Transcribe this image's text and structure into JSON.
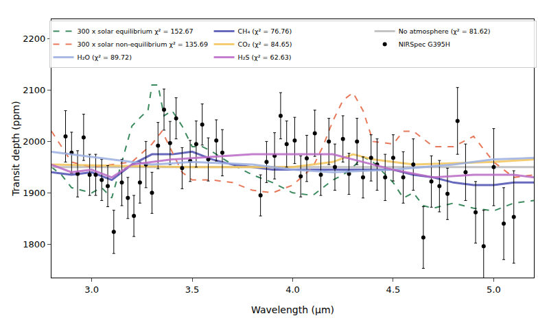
{
  "chart_data": {
    "type": "line",
    "x_label": "Wavelength (μm)",
    "y_label": "Transit depth (ppm)",
    "xlim": [
      2.8,
      5.2
    ],
    "ylim": [
      1735,
      2238
    ],
    "xticks": [
      {
        "value": 3,
        "label": "3.0"
      },
      {
        "value": 3.5,
        "label": "3.5"
      },
      {
        "value": 4,
        "label": "4.0"
      },
      {
        "value": 4.5,
        "label": "4.5"
      },
      {
        "value": 5,
        "label": "5.0"
      }
    ],
    "yticks": [
      1800,
      1900,
      2000,
      2100,
      2200
    ],
    "grid": false,
    "legend": "top",
    "series": [
      {
        "name": "300 x solar equilibrium χ² = 152.67",
        "type": "line",
        "line_style": "dashed",
        "color": "#3b8a5e",
        "x": [
          2.8,
          2.85,
          2.9,
          2.95,
          3.0,
          3.05,
          3.1,
          3.15,
          3.2,
          3.25,
          3.28,
          3.3,
          3.33,
          3.36,
          3.4,
          3.45,
          3.5,
          3.55,
          3.6,
          3.7,
          3.8,
          3.9,
          4.0,
          4.1,
          4.2,
          4.25,
          4.3,
          4.35,
          4.4,
          4.45,
          4.5,
          4.55,
          4.6,
          4.65,
          4.7,
          4.8,
          4.9,
          5.0,
          5.1,
          5.2
        ],
        "values": [
          1950,
          1935,
          1910,
          1905,
          1900,
          1910,
          1890,
          1960,
          2030,
          2050,
          2060,
          2110,
          2110,
          2050,
          2060,
          2030,
          1990,
          1990,
          1980,
          1955,
          1935,
          1920,
          1900,
          1895,
          1925,
          1935,
          1950,
          1970,
          1960,
          1940,
          1920,
          1890,
          1900,
          1875,
          1870,
          1880,
          1870,
          1865,
          1880,
          1885
        ]
      },
      {
        "name": "CH₄ (χ² = 76.76)",
        "type": "line",
        "line_style": "solid",
        "color": "#4b4fb0",
        "x": [
          2.8,
          2.9,
          3.0,
          3.1,
          3.2,
          3.3,
          3.4,
          3.5,
          3.6,
          3.7,
          3.8,
          3.9,
          4.0,
          4.2,
          4.4,
          4.5,
          4.6,
          4.7,
          4.8,
          4.9,
          5.0,
          5.1,
          5.2
        ],
        "values": [
          1940,
          1935,
          1940,
          1925,
          1955,
          1975,
          1975,
          1980,
          1965,
          1955,
          1950,
          1945,
          1945,
          1945,
          1945,
          1945,
          1935,
          1930,
          1920,
          1915,
          1915,
          1920,
          1920
        ]
      },
      {
        "name": "No atmosphere (χ² = 81.62)",
        "type": "line",
        "line_style": "solid",
        "color": "#b8b8b8",
        "x": [
          2.8,
          5.2
        ],
        "values": [
          1950,
          1950
        ]
      },
      {
        "name": "300 x solar non-equilibrium χ² = 135.69",
        "type": "line",
        "line_style": "dashed",
        "color": "#e8785a",
        "x": [
          2.8,
          2.85,
          2.9,
          3.0,
          3.1,
          3.2,
          3.3,
          3.35,
          3.4,
          3.45,
          3.5,
          3.6,
          3.7,
          3.8,
          3.9,
          4.0,
          4.1,
          4.15,
          4.2,
          4.25,
          4.3,
          4.35,
          4.4,
          4.5,
          4.55,
          4.6,
          4.7,
          4.8,
          4.85,
          4.9,
          5.0,
          5.1,
          5.2
        ],
        "values": [
          2020,
          1990,
          1960,
          1950,
          1955,
          1960,
          1995,
          2020,
          1980,
          1940,
          1925,
          1925,
          1920,
          1905,
          1900,
          1915,
          1950,
          1990,
          2040,
          2080,
          2095,
          2060,
          2000,
          1995,
          2020,
          2020,
          1990,
          1990,
          2000,
          2010,
          1960,
          1930,
          1935
        ]
      },
      {
        "name": "CO₂ (χ² = 84.65)",
        "type": "line",
        "line_style": "solid",
        "color": "#f2c45a",
        "x": [
          2.8,
          3.5,
          4.0,
          4.2,
          4.3,
          4.4,
          4.6,
          5.0,
          5.2
        ],
        "values": [
          1955,
          1950,
          1950,
          1960,
          1975,
          1965,
          1955,
          1960,
          1965
        ]
      },
      {
        "name": "NIRSpec G395H",
        "type": "scatter",
        "marker": "circle",
        "color": "#000000",
        "x": [
          2.87,
          2.9,
          2.93,
          2.96,
          2.99,
          3.02,
          3.05,
          3.08,
          3.11,
          3.15,
          3.18,
          3.21,
          3.24,
          3.27,
          3.3,
          3.33,
          3.36,
          3.39,
          3.42,
          3.45,
          3.49,
          3.52,
          3.55,
          3.58,
          3.62,
          3.65,
          3.84,
          3.87,
          3.91,
          3.94,
          3.97,
          4.01,
          4.04,
          4.07,
          4.11,
          4.14,
          4.18,
          4.21,
          4.25,
          4.28,
          4.32,
          4.35,
          4.39,
          4.42,
          4.46,
          4.5,
          4.55,
          4.6,
          4.65,
          4.69,
          4.73,
          4.77,
          4.82,
          4.86,
          4.91,
          4.95,
          5.0,
          5.05,
          5.1
        ],
        "values": [
          2010,
          1978,
          1937,
          2008,
          1935,
          1935,
          1925,
          1913,
          1824,
          1920,
          1890,
          1855,
          1920,
          1955,
          1900,
          1992,
          2062,
          1997,
          2045,
          1948,
          1962,
          1995,
          2033,
          1965,
          2002,
          1978,
          1895,
          1960,
          1972,
          2050,
          1995,
          2002,
          1932,
          1967,
          2016,
          1935,
          2000,
          1950,
          2005,
          1937,
          2000,
          1930,
          1968,
          1955,
          1930,
          1968,
          1930,
          1955,
          1813,
          1922,
          1913,
          1898,
          2040,
          1940,
          1862,
          1796,
          1950,
          1840,
          1853
        ],
        "error": [
          50,
          40,
          45,
          45,
          40,
          40,
          40,
          40,
          42,
          45,
          40,
          40,
          40,
          45,
          40,
          45,
          40,
          42,
          40,
          40,
          40,
          45,
          40,
          42,
          40,
          45,
          40,
          40,
          45,
          45,
          45,
          45,
          40,
          45,
          45,
          40,
          45,
          45,
          45,
          40,
          45,
          40,
          45,
          50,
          45,
          45,
          50,
          50,
          60,
          50,
          50,
          50,
          65,
          55,
          60,
          70,
          75,
          70,
          90
        ]
      },
      {
        "name": "H₂O (χ² = 89.72)",
        "type": "line",
        "line_style": "solid",
        "color": "#9aaee0",
        "x": [
          2.8,
          3.0,
          3.3,
          3.5,
          3.8,
          4.0,
          4.2,
          4.5,
          4.8,
          5.0,
          5.2
        ],
        "values": [
          1980,
          1970,
          1955,
          1960,
          1955,
          1945,
          1940,
          1945,
          1955,
          1965,
          1968
        ]
      },
      {
        "name": "H₂S (χ² = 62.63)",
        "type": "line",
        "line_style": "solid",
        "color": "#b967c4",
        "x": [
          2.8,
          2.9,
          3.0,
          3.1,
          3.2,
          3.3,
          3.4,
          3.6,
          3.8,
          4.0,
          4.2,
          4.3,
          4.5,
          4.7,
          4.9,
          5.0,
          5.1,
          5.2
        ],
        "values": [
          1955,
          1940,
          1945,
          1930,
          1955,
          1960,
          1965,
          1970,
          1975,
          1975,
          1975,
          1965,
          1945,
          1930,
          1935,
          1935,
          1935,
          1930
        ]
      }
    ]
  }
}
